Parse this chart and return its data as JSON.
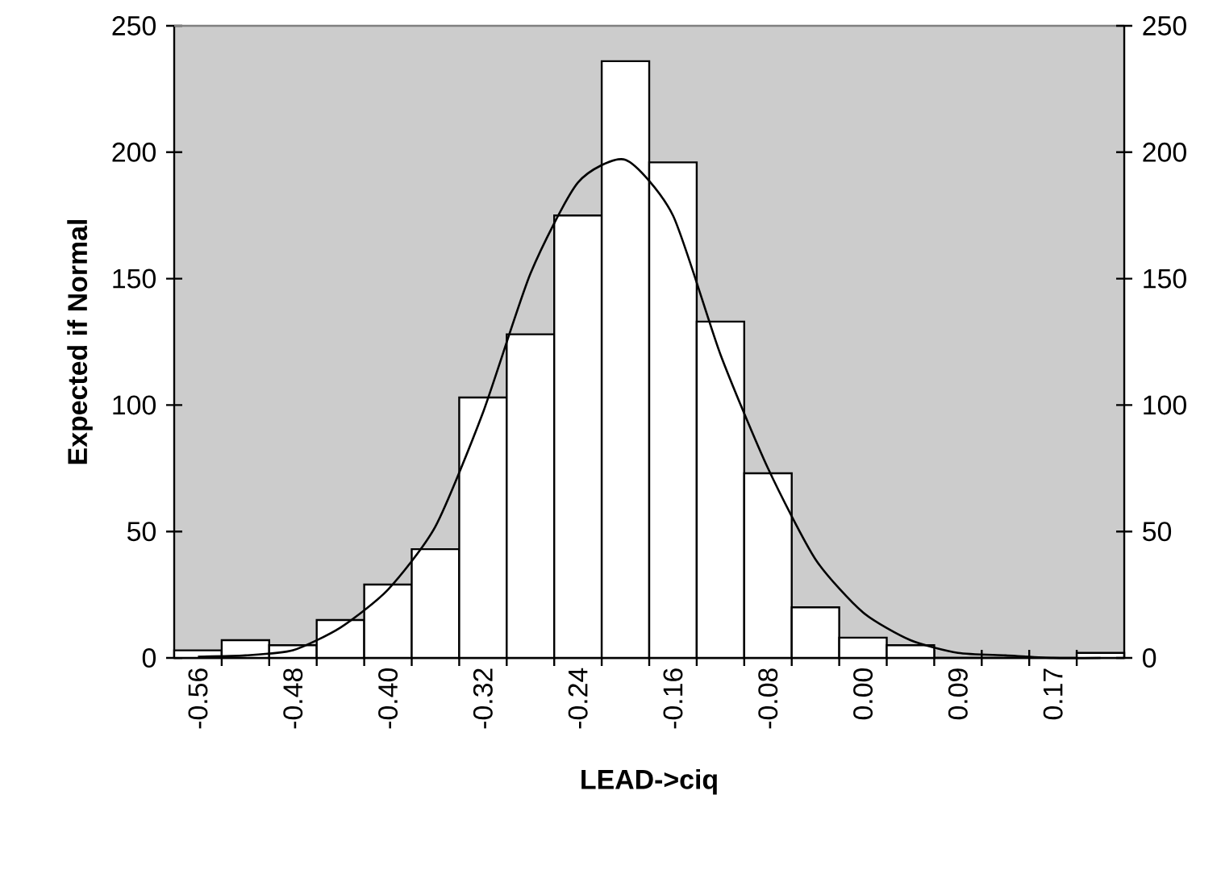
{
  "chart_data": {
    "type": "bar",
    "xlabel": "LEAD->ciq",
    "ylabel": "Expected if Normal",
    "categories": [
      "-0.56",
      null,
      "-0.48",
      null,
      "-0.40",
      null,
      "-0.32",
      null,
      "-0.24",
      null,
      "-0.16",
      null,
      "-0.08",
      null,
      "0.00",
      null,
      "0.09",
      null,
      "0.17",
      null
    ],
    "ylim": [
      0,
      250
    ],
    "yticks": [
      0,
      50,
      100,
      150,
      200,
      250
    ],
    "y2lim": [
      0,
      250
    ],
    "y2ticks": [
      0,
      50,
      100,
      150,
      200,
      250
    ],
    "grid": false,
    "series": [
      {
        "color": "#ffffff",
        "values": [
          3,
          7,
          5,
          15,
          29,
          43,
          103,
          128,
          175,
          236,
          196,
          133,
          73,
          20,
          8,
          5,
          0,
          0,
          0,
          2
        ]
      },
      {
        "type": "line",
        "color": "#000000",
        "values": [
          0.5,
          1,
          3,
          12,
          27,
          52,
          97,
          152,
          188,
          197,
          175,
          120,
          75,
          39,
          18,
          7,
          2,
          1,
          0,
          0
        ]
      }
    ]
  }
}
